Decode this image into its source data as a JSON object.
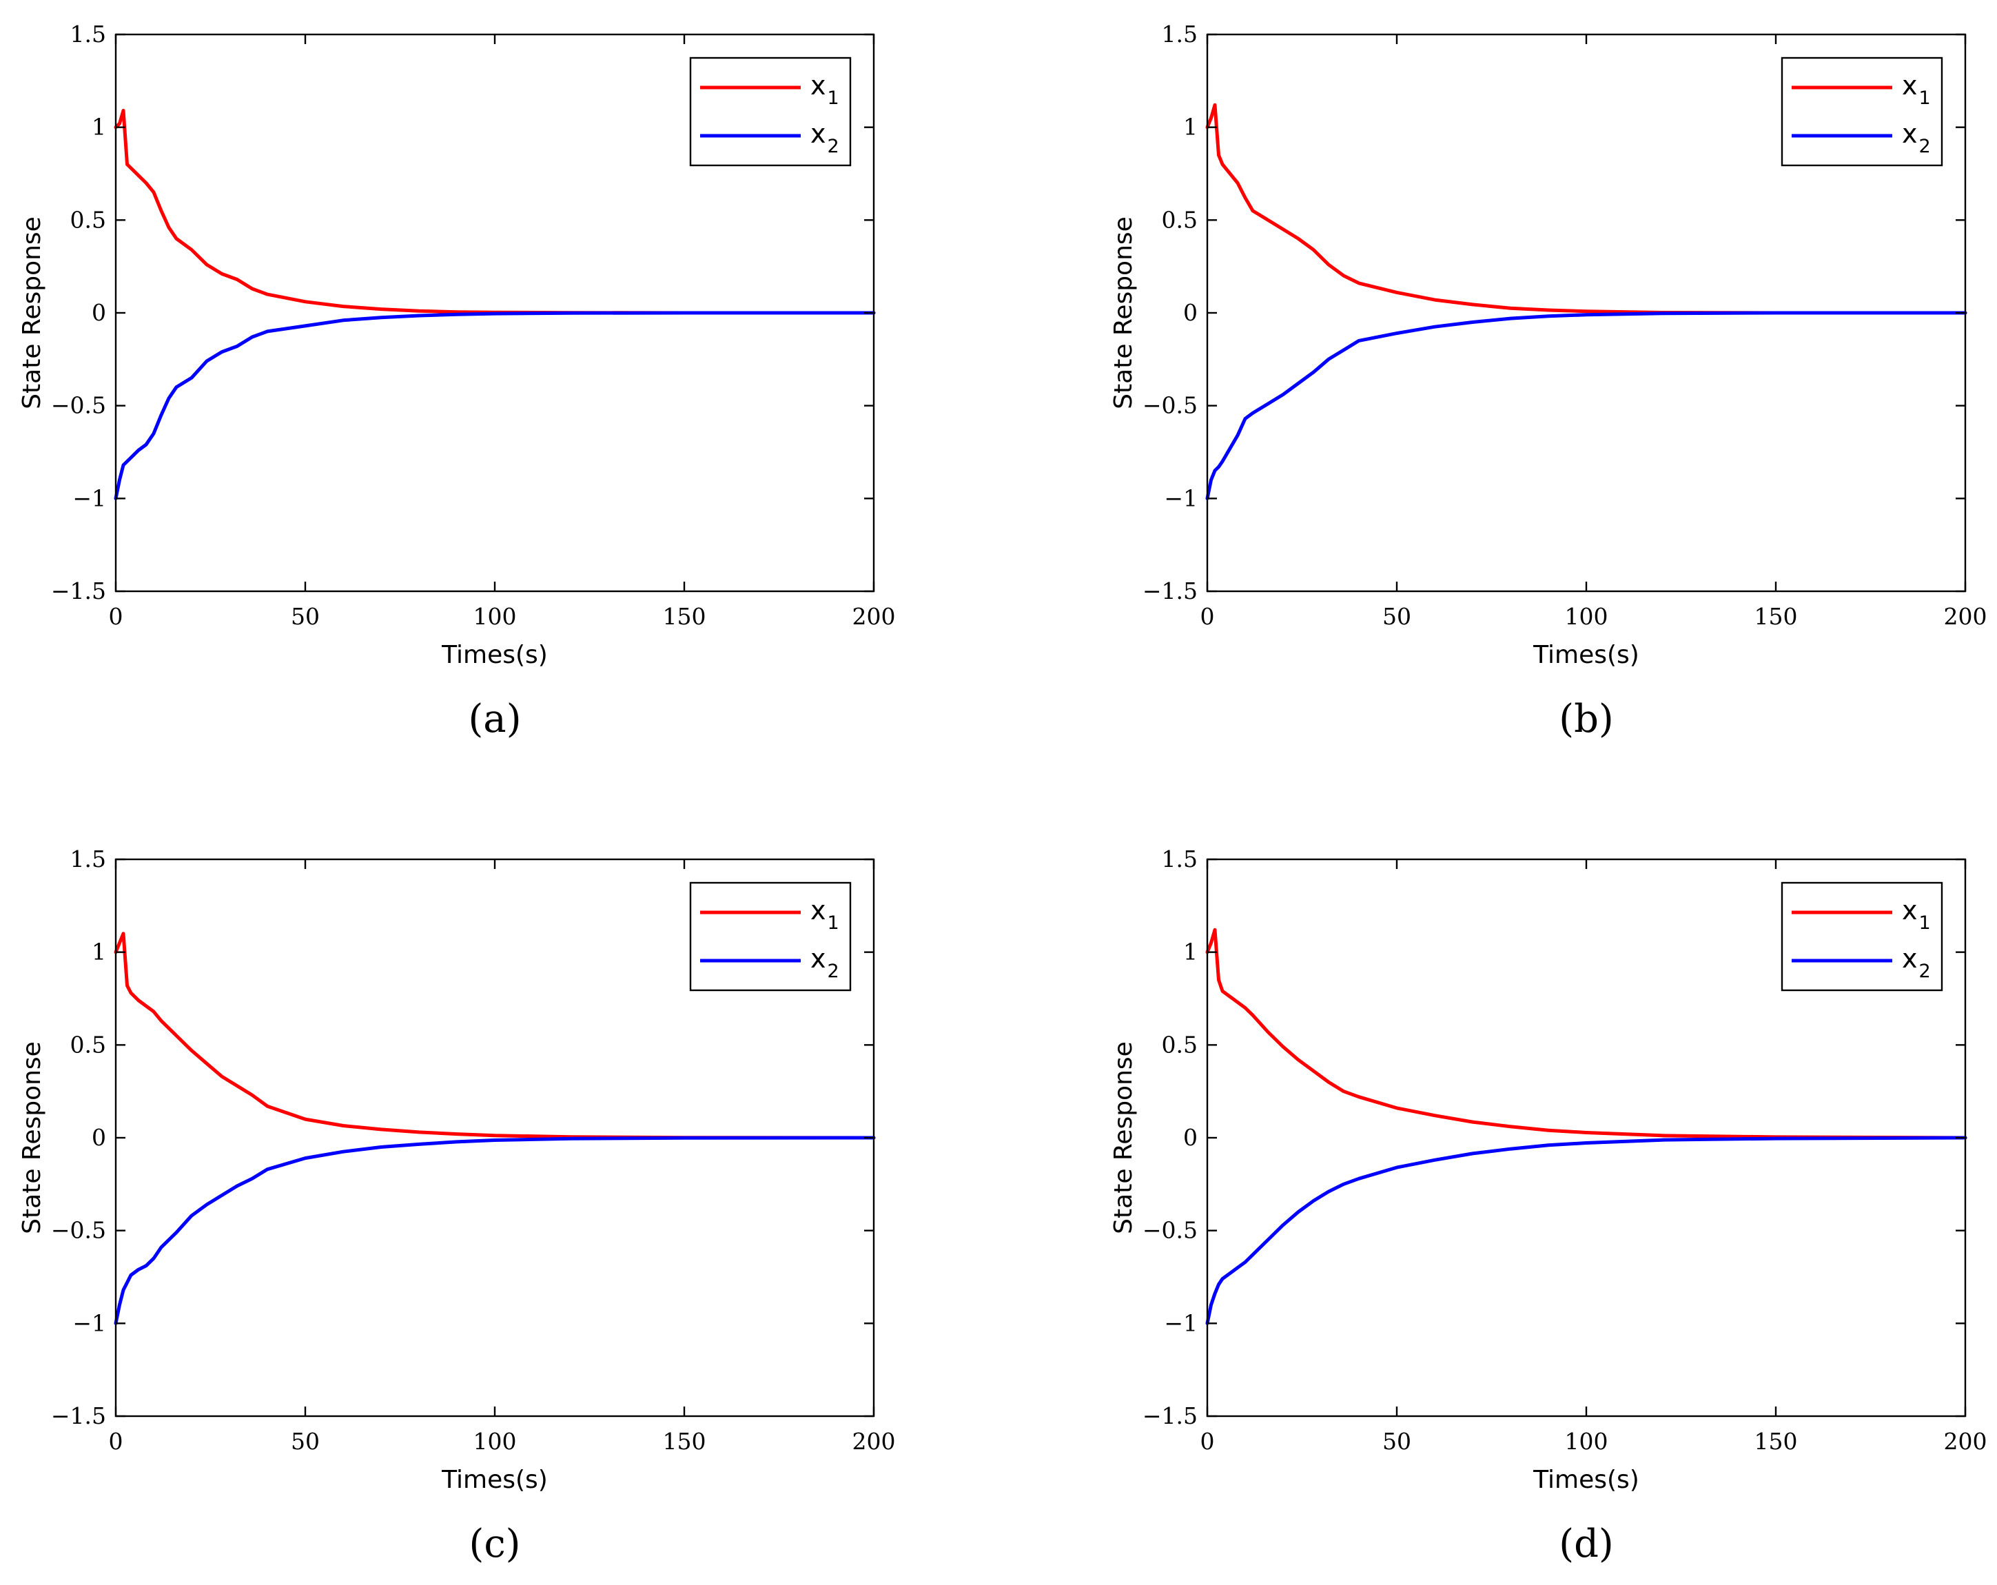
{
  "chart_data": [
    {
      "type": "line",
      "panel_caption": "(a)",
      "xlabel": "Times(s)",
      "ylabel": "State Response",
      "xlim": [
        0,
        200
      ],
      "ylim": [
        -1.5,
        1.5
      ],
      "xticks": [
        0,
        50,
        100,
        150,
        200
      ],
      "xtick_labels": [
        "0",
        "50",
        "100",
        "150",
        "200"
      ],
      "yticks": [
        1.5,
        1,
        0.5,
        0,
        -0.5,
        -1,
        -1.5
      ],
      "ytick_labels": [
        "1.5",
        "1",
        "0.5",
        "0",
        "−0.5",
        "−1",
        "−1.5"
      ],
      "legend_position": "top-right",
      "series": [
        {
          "name": "x",
          "subscript": "1",
          "color": "#ff0000",
          "x": [
            0,
            1,
            2,
            3,
            4,
            6,
            8,
            10,
            12,
            14,
            16,
            20,
            24,
            28,
            32,
            36,
            40,
            50,
            60,
            70,
            80,
            90,
            100,
            120,
            150,
            200
          ],
          "y": [
            1.0,
            1.02,
            1.09,
            0.8,
            0.78,
            0.74,
            0.7,
            0.65,
            0.55,
            0.46,
            0.4,
            0.34,
            0.26,
            0.21,
            0.18,
            0.13,
            0.1,
            0.06,
            0.035,
            0.02,
            0.01,
            0.005,
            0.003,
            0.001,
            0.0,
            0.0
          ]
        },
        {
          "name": "x",
          "subscript": "2",
          "color": "#0000ff",
          "x": [
            0,
            1,
            2,
            3,
            4,
            6,
            8,
            10,
            12,
            14,
            16,
            20,
            24,
            28,
            32,
            36,
            40,
            50,
            60,
            70,
            80,
            90,
            100,
            120,
            150,
            200
          ],
          "y": [
            -1.0,
            -0.9,
            -0.82,
            -0.8,
            -0.78,
            -0.74,
            -0.71,
            -0.65,
            -0.55,
            -0.46,
            -0.4,
            -0.35,
            -0.26,
            -0.21,
            -0.18,
            -0.13,
            -0.1,
            -0.07,
            -0.04,
            -0.025,
            -0.015,
            -0.008,
            -0.004,
            -0.001,
            0.0,
            0.0
          ]
        }
      ]
    },
    {
      "type": "line",
      "panel_caption": "(b)",
      "xlabel": "Times(s)",
      "ylabel": "State Response",
      "xlim": [
        0,
        200
      ],
      "ylim": [
        -1.5,
        1.5
      ],
      "xticks": [
        0,
        50,
        100,
        150,
        200
      ],
      "xtick_labels": [
        "0",
        "50",
        "100",
        "150",
        "200"
      ],
      "yticks": [
        1.5,
        1,
        0.5,
        0,
        -0.5,
        -1,
        -1.5
      ],
      "ytick_labels": [
        "1.5",
        "1",
        "0.5",
        "0",
        "−0.5",
        "−1",
        "−1.5"
      ],
      "legend_position": "top-right",
      "series": [
        {
          "name": "x",
          "subscript": "1",
          "color": "#ff0000",
          "x": [
            0,
            1,
            2,
            3,
            4,
            6,
            8,
            10,
            12,
            16,
            20,
            24,
            28,
            32,
            36,
            40,
            50,
            60,
            70,
            80,
            90,
            100,
            120,
            150,
            200
          ],
          "y": [
            1.0,
            1.05,
            1.12,
            0.85,
            0.8,
            0.75,
            0.7,
            0.62,
            0.55,
            0.5,
            0.45,
            0.4,
            0.34,
            0.26,
            0.2,
            0.16,
            0.11,
            0.07,
            0.045,
            0.025,
            0.015,
            0.008,
            0.002,
            0.0,
            0.0
          ]
        },
        {
          "name": "x",
          "subscript": "2",
          "color": "#0000ff",
          "x": [
            0,
            1,
            2,
            3,
            4,
            6,
            8,
            10,
            12,
            16,
            20,
            24,
            28,
            32,
            36,
            40,
            50,
            60,
            70,
            80,
            90,
            100,
            120,
            150,
            200
          ],
          "y": [
            -1.0,
            -0.9,
            -0.85,
            -0.83,
            -0.8,
            -0.73,
            -0.66,
            -0.57,
            -0.54,
            -0.49,
            -0.44,
            -0.38,
            -0.32,
            -0.25,
            -0.2,
            -0.15,
            -0.11,
            -0.075,
            -0.05,
            -0.03,
            -0.018,
            -0.01,
            -0.003,
            0.0,
            0.0
          ]
        }
      ]
    },
    {
      "type": "line",
      "panel_caption": "(c)",
      "xlabel": "Times(s)",
      "ylabel": "State Response",
      "xlim": [
        0,
        200
      ],
      "ylim": [
        -1.5,
        1.5
      ],
      "xticks": [
        0,
        50,
        100,
        150,
        200
      ],
      "xtick_labels": [
        "0",
        "50",
        "100",
        "150",
        "200"
      ],
      "yticks": [
        1.5,
        1,
        0.5,
        0,
        -0.5,
        -1,
        -1.5
      ],
      "ytick_labels": [
        "1.5",
        "1",
        "0.5",
        "0",
        "−0.5",
        "−1",
        "−1.5"
      ],
      "legend_position": "top-right",
      "series": [
        {
          "name": "x",
          "subscript": "1",
          "color": "#ff0000",
          "x": [
            0,
            1,
            2,
            3,
            4,
            6,
            8,
            10,
            12,
            16,
            20,
            24,
            28,
            32,
            36,
            40,
            50,
            60,
            70,
            80,
            90,
            100,
            120,
            150,
            200
          ],
          "y": [
            1.0,
            1.05,
            1.1,
            0.82,
            0.78,
            0.74,
            0.71,
            0.68,
            0.63,
            0.55,
            0.47,
            0.4,
            0.33,
            0.28,
            0.23,
            0.17,
            0.1,
            0.065,
            0.045,
            0.03,
            0.02,
            0.012,
            0.005,
            0.001,
            0.0
          ]
        },
        {
          "name": "x",
          "subscript": "2",
          "color": "#0000ff",
          "x": [
            0,
            1,
            2,
            3,
            4,
            6,
            8,
            10,
            12,
            16,
            20,
            24,
            28,
            32,
            36,
            40,
            50,
            60,
            70,
            80,
            90,
            100,
            120,
            150,
            200
          ],
          "y": [
            -1.0,
            -0.9,
            -0.82,
            -0.78,
            -0.74,
            -0.71,
            -0.69,
            -0.65,
            -0.59,
            -0.51,
            -0.42,
            -0.36,
            -0.31,
            -0.26,
            -0.22,
            -0.17,
            -0.11,
            -0.075,
            -0.05,
            -0.035,
            -0.022,
            -0.013,
            -0.005,
            -0.001,
            0.0
          ]
        }
      ]
    },
    {
      "type": "line",
      "panel_caption": "(d)",
      "xlabel": "Times(s)",
      "ylabel": "State Response",
      "xlim": [
        0,
        200
      ],
      "ylim": [
        -1.5,
        1.5
      ],
      "xticks": [
        0,
        50,
        100,
        150,
        200
      ],
      "xtick_labels": [
        "0",
        "50",
        "100",
        "150",
        "200"
      ],
      "yticks": [
        1.5,
        1,
        0.5,
        0,
        -0.5,
        -1,
        -1.5
      ],
      "ytick_labels": [
        "1.5",
        "1",
        "0.5",
        "0",
        "−0.5",
        "−1",
        "−1.5"
      ],
      "legend_position": "top-right",
      "series": [
        {
          "name": "x",
          "subscript": "1",
          "color": "#ff0000",
          "x": [
            0,
            1,
            2,
            3,
            4,
            6,
            8,
            10,
            12,
            16,
            20,
            24,
            28,
            32,
            36,
            40,
            50,
            60,
            70,
            80,
            90,
            100,
            120,
            150,
            200
          ],
          "y": [
            1.0,
            1.05,
            1.12,
            0.85,
            0.79,
            0.76,
            0.73,
            0.7,
            0.66,
            0.57,
            0.49,
            0.42,
            0.36,
            0.3,
            0.25,
            0.22,
            0.16,
            0.12,
            0.085,
            0.06,
            0.04,
            0.028,
            0.012,
            0.004,
            0.0
          ]
        },
        {
          "name": "x",
          "subscript": "2",
          "color": "#0000ff",
          "x": [
            0,
            1,
            2,
            3,
            4,
            6,
            8,
            10,
            12,
            16,
            20,
            24,
            28,
            32,
            36,
            40,
            50,
            60,
            70,
            80,
            90,
            100,
            120,
            150,
            200
          ],
          "y": [
            -1.0,
            -0.9,
            -0.84,
            -0.79,
            -0.76,
            -0.73,
            -0.7,
            -0.67,
            -0.63,
            -0.55,
            -0.47,
            -0.4,
            -0.34,
            -0.29,
            -0.25,
            -0.22,
            -0.16,
            -0.12,
            -0.085,
            -0.06,
            -0.04,
            -0.028,
            -0.012,
            -0.004,
            0.0
          ]
        }
      ]
    }
  ]
}
